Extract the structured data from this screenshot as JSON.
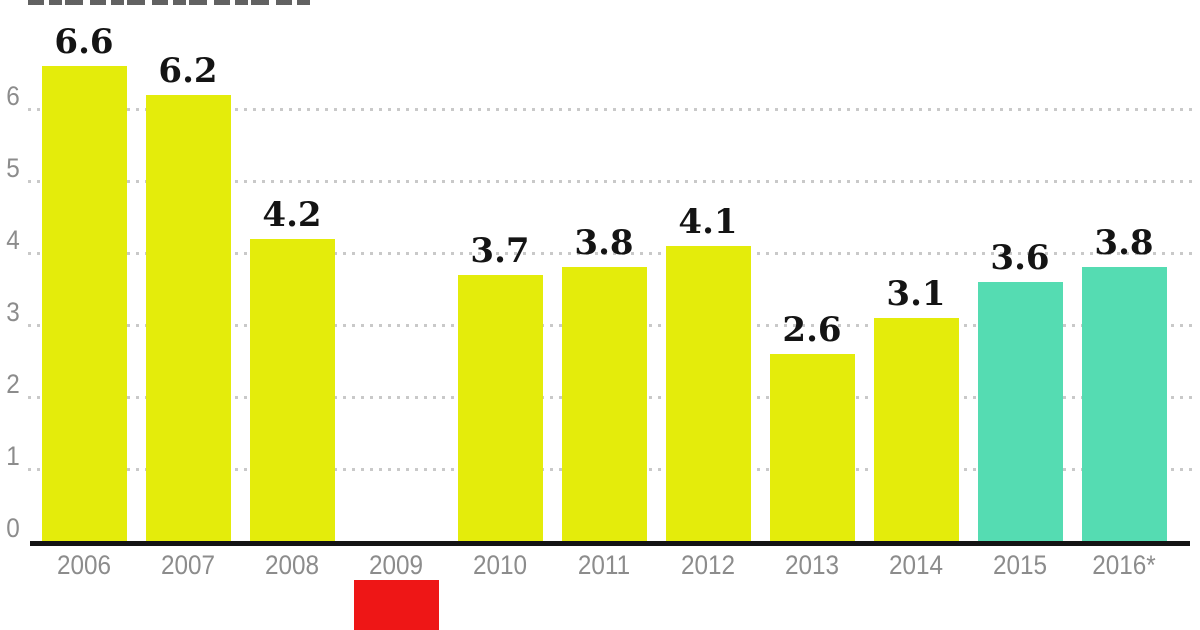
{
  "chart_data": {
    "type": "bar",
    "title": "",
    "categories": [
      "2006",
      "2007",
      "2008",
      "2009",
      "2010",
      "2011",
      "2012",
      "2013",
      "2014",
      "2015",
      "2016*"
    ],
    "values": [
      6.6,
      6.2,
      4.2,
      null,
      3.7,
      3.8,
      4.1,
      2.6,
      3.1,
      3.6,
      3.8
    ],
    "value_labels": [
      "6.6",
      "6.2",
      "4.2",
      "",
      "3.7",
      "3.8",
      "4.1",
      "2.6",
      "3.1",
      "3.6",
      "3.8"
    ],
    "bar_roles": [
      "default",
      "default",
      "default",
      "negative_clipped",
      "default",
      "default",
      "default",
      "default",
      "default",
      "highlight",
      "highlight"
    ],
    "y_tick_labels": [
      "0",
      "1",
      "2",
      "3",
      "4",
      "5",
      "6"
    ],
    "ylim": [
      0,
      6.9
    ],
    "grid": "horizontal dotted lines at integer values 1-6",
    "legend_position": "none",
    "xlabel": "",
    "ylabel": "",
    "colors": {
      "bar_default": "#e4ec0b",
      "bar_highlight": "#55dcb2",
      "bar_negative": "#ee1616",
      "axis_line": "#141414",
      "tick_label": "#8c8c8c",
      "grid_dots": "#c9c9c9",
      "value_label": "#141414"
    },
    "annotations": {
      "negative_bar": "2009 bar is red, drawn below the x-axis and clipped by the bottom edge of the image",
      "asterisk": "2016 category label carries an asterisk (forecast/preliminary)"
    }
  }
}
